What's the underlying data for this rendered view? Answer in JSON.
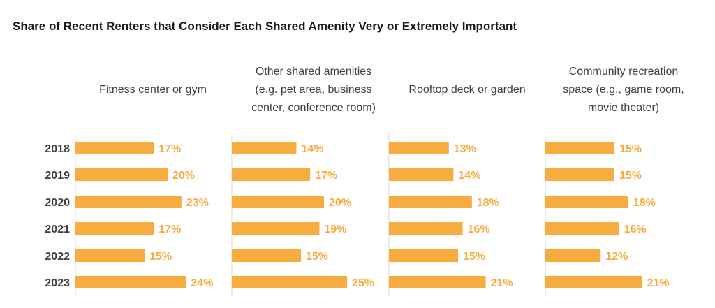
{
  "title": "Share of Recent Renters that Consider Each Shared Amenity Very or Extremely Important",
  "colors": {
    "bar": "#f7ac3f",
    "label": "#f7ac3f",
    "text": "#404040",
    "divider": "#d9d9d9"
  },
  "chart_data": {
    "type": "bar",
    "orientation": "horizontal",
    "title": "Share of Recent Renters that Consider Each Shared Amenity Very or Extremely Important",
    "categories": [
      "2018",
      "2019",
      "2020",
      "2021",
      "2022",
      "2023"
    ],
    "panels": [
      {
        "title_lines": [
          "Fitness center or gym"
        ],
        "values": [
          17,
          20,
          23,
          17,
          15,
          24
        ],
        "labels": [
          "17%",
          "20%",
          "23%",
          "17%",
          "15%",
          "24%"
        ]
      },
      {
        "title_lines": [
          "Other shared amenities",
          "(e.g. pet area, business",
          "center, conference room)"
        ],
        "values": [
          14,
          17,
          20,
          19,
          15,
          25
        ],
        "labels": [
          "14%",
          "17%",
          "20%",
          "19%",
          "15%",
          "25%"
        ]
      },
      {
        "title_lines": [
          "Rooftop deck or garden"
        ],
        "values": [
          13,
          14,
          18,
          16,
          15,
          21
        ],
        "labels": [
          "13%",
          "14%",
          "18%",
          "16%",
          "15%",
          "21%"
        ]
      },
      {
        "title_lines": [
          "Community recreation",
          "space (e.g., game room,",
          "movie theater)"
        ],
        "values": [
          15,
          15,
          18,
          16,
          12,
          21
        ],
        "labels": [
          "15%",
          "15%",
          "18%",
          "16%",
          "12%",
          "21%"
        ]
      }
    ],
    "value_unit": "%",
    "legend": "none",
    "grid": false
  }
}
